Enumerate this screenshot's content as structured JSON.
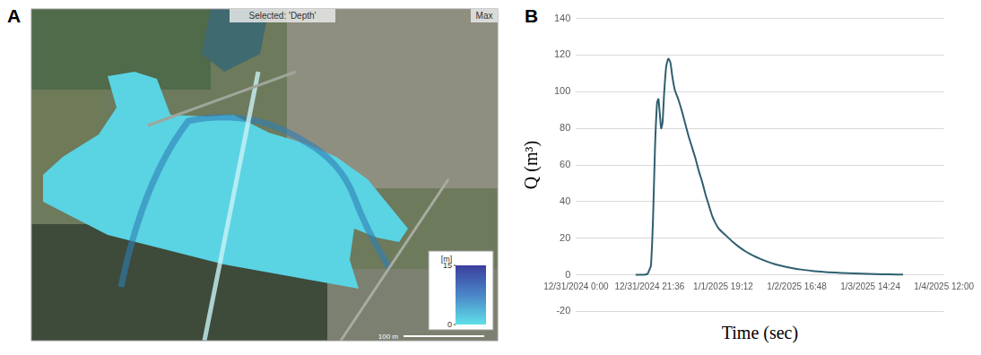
{
  "panel_labels": [
    "A",
    "B"
  ],
  "map": {
    "header": "Selected: 'Depth'",
    "corner_label": "Max",
    "colorbar": {
      "unit": "[m]",
      "range": [
        0,
        15
      ],
      "ticks": [
        0,
        15
      ]
    },
    "scale_bar": "100 m"
  },
  "chart_data": {
    "type": "line",
    "x_label": "Time (sec)",
    "y_label": "Q (m³)",
    "x": [
      17.5,
      19,
      20,
      21,
      21.6,
      22,
      22.6,
      23.2,
      23.8,
      24.2,
      24.6,
      25.0,
      25.4,
      25.9,
      26.5,
      27.1,
      27.7,
      28.3,
      29,
      30,
      31,
      32,
      33,
      34,
      35,
      36,
      37,
      38,
      39,
      40,
      41,
      42,
      44,
      46,
      48,
      50,
      52,
      54,
      56,
      58,
      60,
      62,
      64,
      66,
      70,
      74,
      78,
      82,
      86,
      90,
      94,
      96
    ],
    "values": [
      0,
      0,
      0,
      0.5,
      3,
      5,
      30,
      70,
      94,
      96,
      88,
      80,
      83,
      100,
      114,
      118,
      116,
      108,
      101,
      96,
      90,
      83,
      76,
      70,
      64,
      57,
      51,
      44,
      38,
      32,
      28,
      25,
      21.5,
      18,
      15,
      12.5,
      10.5,
      8.8,
      7.3,
      6,
      5,
      4.2,
      3.5,
      2.9,
      2,
      1.4,
      1,
      0.7,
      0.5,
      0.3,
      0.2,
      0.2
    ],
    "color": "#2f5f6f",
    "xlim": [
      0,
      108
    ],
    "xticks": [
      {
        "value": 0,
        "label": "12/31/2024 0:00"
      },
      {
        "value": 21.6,
        "label": "12/31/2024 21:36"
      },
      {
        "value": 43.2,
        "label": "1/1/2025 19:12"
      },
      {
        "value": 64.8,
        "label": "1/2/2025 16:48"
      },
      {
        "value": 86.4,
        "label": "1/3/2025 14:24"
      },
      {
        "value": 108,
        "label": "1/4/2025 12:00"
      }
    ],
    "ylim": [
      -20,
      140
    ],
    "yticks": [
      -20,
      0,
      20,
      40,
      60,
      80,
      100,
      120,
      140
    ],
    "grid": true
  }
}
